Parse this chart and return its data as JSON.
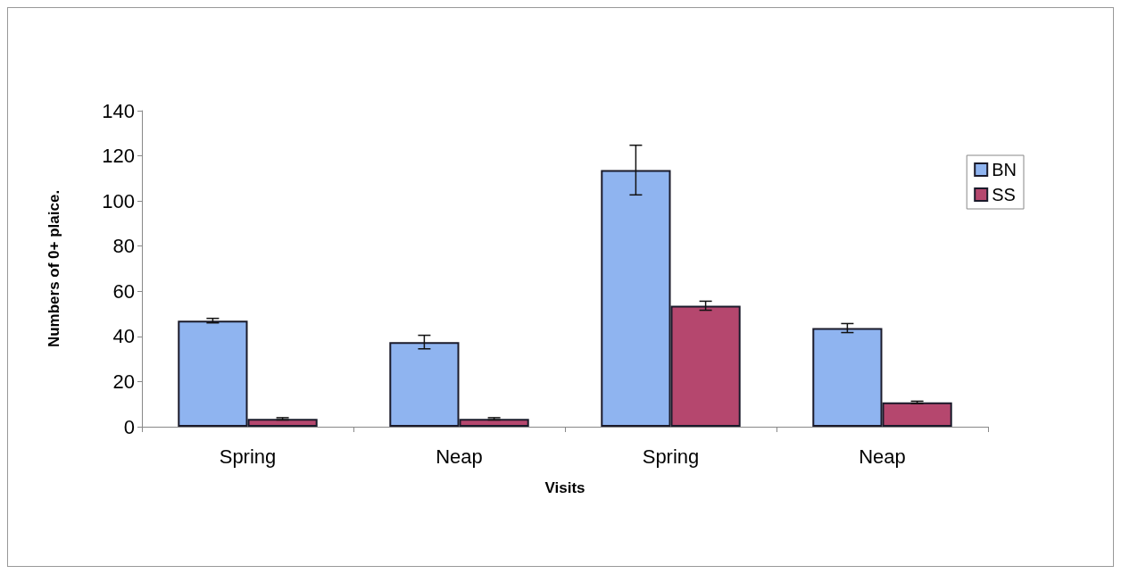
{
  "chart_data": {
    "type": "bar",
    "xlabel": "Visits",
    "ylabel": "Numbers of 0+ plaice.",
    "categories": [
      "Spring",
      "Neap",
      "Spring",
      "Neap"
    ],
    "series": [
      {
        "name": "BN",
        "color": "#8fb4f0",
        "values": [
          47,
          37.5,
          113.7,
          43.7
        ],
        "errors": [
          1,
          3,
          11,
          2
        ]
      },
      {
        "name": "SS",
        "color": "#b5476e",
        "values": [
          3.5,
          3.5,
          53.6,
          10.8
        ],
        "errors": [
          0.5,
          0.5,
          2,
          0.5
        ]
      }
    ],
    "ylim": [
      0,
      140
    ],
    "yticks": [
      0,
      20,
      40,
      60,
      80,
      100,
      120,
      140
    ],
    "grid": false,
    "legend": "right"
  }
}
